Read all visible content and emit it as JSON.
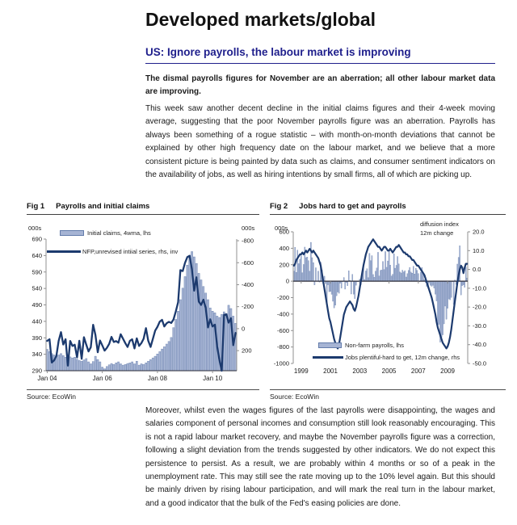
{
  "doc": {
    "title": "Developed markets/global",
    "section_heading": "US: Ignore payrolls, the labour market is improving",
    "lead": "The dismal payrolls figures for November are an aberration; all other labour market data are improving.",
    "para1": "This week saw another decent decline in the initial claims figures and their 4-week moving average, suggesting that the poor November payrolls figure was an aberration. Payrolls has always been something of a rogue statistic – with month-on-month deviations that cannot be explained by other high frequency date on the labour market, and we believe that a more consistent picture is being painted by data such as claims, and consumer sentiment indicators on the availability of jobs, as well as hiring intentions by small firms, all of which are picking up.",
    "para2": "Moreover, whilst even the wages figures of the last payrolls were disappointing, the wages and salaries component of personal incomes and consumption still look reasonably encouraging. This is not a rapid labour market recovery, and maybe the November payrolls figure was a correction, following a slight deviation from the trends suggested by other indicators. We do not expect this persistence to persist. As a result, we are probably within 4 months or so of a peak in the unemployment rate. This may still see the rate moving up to the 10% level again. But this should be mainly driven by rising labour participation, and will mark the real turn in the labour market, and a good indicator that the bulk of the Fed's easing policies are done."
  },
  "colors": {
    "heading_navy": "#1f1f8c",
    "bar_fill": "#a6b4d4",
    "bar_edge": "#637cab",
    "line": "#1c3a6e",
    "axis": "#909090",
    "axis_dark": "#2e2e3a",
    "text": "#1a1a1a"
  },
  "chart_data": [
    {
      "type": "bar+line",
      "fig_label": "Fig 1",
      "title": "Payrolls and initial claims",
      "source": "Source: EcoWin",
      "y_left_unit": "000s",
      "y_right_unit": "000s",
      "x_freq": "monthly",
      "x_start": "Jan 2004",
      "x_end": "Nov 2010",
      "x_ticks": [
        {
          "label": "Jan 04",
          "i": 0
        },
        {
          "label": "Jan 06",
          "i": 24
        },
        {
          "label": "Jan 08",
          "i": 48
        },
        {
          "label": "Jan 10",
          "i": 72
        }
      ],
      "y_left_ticks": [
        690,
        640,
        590,
        540,
        490,
        440,
        390,
        340,
        290
      ],
      "y_left_lim": [
        290,
        690
      ],
      "y_right_ticks": [
        -800,
        -600,
        -400,
        -200,
        0,
        200
      ],
      "y_right_lim": [
        -815,
        383
      ],
      "y_right_decimals": 0,
      "right_axis_inverted": true,
      "grid": false,
      "legend_position": "top-left-inside",
      "series": [
        {
          "name": "Initial claims, 4wma, lhs",
          "type": "bar",
          "axis": "left",
          "values": [
            355,
            348,
            342,
            338,
            335,
            338,
            342,
            336,
            331,
            328,
            332,
            329,
            331,
            325,
            321,
            319,
            323,
            327,
            317,
            311,
            318,
            334,
            324,
            317,
            301,
            296,
            303,
            308,
            312,
            309,
            314,
            317,
            311,
            307,
            309,
            312,
            314,
            317,
            311,
            319,
            307,
            311,
            309,
            314,
            319,
            324,
            329,
            334,
            341,
            348,
            356,
            363,
            371,
            379,
            391,
            421,
            446,
            471,
            506,
            541,
            576,
            611,
            641,
            652,
            636,
            616,
            586,
            566,
            546,
            526,
            506,
            481,
            471,
            466,
            456,
            452,
            461,
            469,
            463,
            489,
            479,
            456,
            434
          ]
        },
        {
          "name": "NFP,unrevised intiial series, rhs, inv",
          "type": "line",
          "axis": "right",
          "values": [
            112,
            96,
            308,
            288,
            248,
            112,
            32,
            144,
            96,
            337,
            112,
            157,
            146,
            262,
            110,
            274,
            78,
            146,
            207,
            169,
            -35,
            56,
            215,
            108,
            154,
            200,
            175,
            138,
            75,
            121,
            113,
            128,
            51,
            92,
            132,
            167,
            111,
            97,
            180,
            88,
            157,
            132,
            92,
            -4,
            110,
            166,
            94,
            18,
            -17,
            -63,
            -80,
            -20,
            -49,
            -62,
            -51,
            -84,
            -159,
            -240,
            -533,
            -524,
            -598,
            -651,
            -663,
            -539,
            -345,
            -467,
            -247,
            -216,
            -263,
            -190,
            -11,
            -85,
            -20,
            -36,
            162,
            290,
            431,
            -125,
            -131,
            -54,
            -95,
            151,
            39
          ]
        }
      ]
    },
    {
      "type": "bar+line",
      "fig_label": "Fig 2",
      "title": "Jobs hard to get and payrolls",
      "source": "Source: EcoWin",
      "y_left_unit": "000s",
      "y_right_unit_lines": [
        "diffusion index",
        "12m change"
      ],
      "x_freq": "monthly",
      "x_start": "Jan 1999",
      "x_end": "Nov 2010",
      "x_ticks": [
        {
          "label": "1999",
          "i": 6
        },
        {
          "label": "2001",
          "i": 30
        },
        {
          "label": "2003",
          "i": 54
        },
        {
          "label": "2005",
          "i": 78
        },
        {
          "label": "2007",
          "i": 102
        },
        {
          "label": "2009",
          "i": 126
        }
      ],
      "y_left_ticks": [
        600,
        400,
        200,
        0,
        -200,
        -400,
        -600,
        -800,
        -1000
      ],
      "y_left_lim": [
        -1000,
        600
      ],
      "y_right_ticks": [
        20,
        10,
        0,
        -10,
        -20,
        -30,
        -40,
        -50
      ],
      "y_right_lim": [
        20,
        -50
      ],
      "y_right_decimals": 1,
      "right_axis_inverted": false,
      "grid": false,
      "legend_position": "bottom-inside",
      "series": [
        {
          "name": "Non-farm payrolls, lhs",
          "type": "bar",
          "axis": "left",
          "values": [
            121,
            412,
            106,
            376,
            213,
            267,
            310,
            103,
            203,
            414,
            286,
            294,
            249,
            121,
            472,
            286,
            225,
            -46,
            163,
            3,
            122,
            -11,
            231,
            138,
            -30,
            61,
            -30,
            -281,
            -44,
            -128,
            -125,
            -160,
            -244,
            -325,
            -292,
            -178,
            -132,
            -147,
            -24,
            -85,
            -7,
            45,
            -97,
            -16,
            -55,
            126,
            8,
            -156,
            83,
            -158,
            -212,
            -49,
            -6,
            -2,
            25,
            -42,
            103,
            203,
            18,
            124,
            150,
            43,
            337,
            250,
            310,
            81,
            47,
            121,
            160,
            351,
            64,
            132,
            136,
            240,
            142,
            360,
            169,
            246,
            369,
            195,
            63,
            84,
            334,
            158,
            193,
            300,
            211,
            112,
            100,
            134,
            113,
            128,
            51,
            92,
            132,
            167,
            111,
            97,
            180,
            88,
            157,
            132,
            92,
            -4,
            110,
            166,
            94,
            18,
            -17,
            -63,
            -80,
            -20,
            -49,
            -62,
            -51,
            -84,
            -159,
            -240,
            -533,
            -524,
            -741,
            -681,
            -652,
            -519,
            -303,
            -463,
            -329,
            -216,
            -227,
            -198,
            -6,
            -283,
            14,
            -39,
            208,
            290,
            431,
            -167,
            -54,
            -45,
            -75,
            171,
            39
          ]
        },
        {
          "name": "Jobs plentiful-hard to get, 12m change, rhs",
          "type": "line",
          "axis": "right",
          "values": [
            2,
            3,
            5,
            6,
            7,
            8,
            8,
            9,
            8,
            9,
            10,
            9,
            10,
            11,
            10,
            9,
            10,
            9,
            8,
            7,
            6,
            4,
            2,
            -2,
            -6,
            -10,
            -14,
            -18,
            -22,
            -26,
            -28,
            -31,
            -34,
            -37,
            -39,
            -41,
            -42,
            -40,
            -36,
            -32,
            -28,
            -24,
            -22,
            -20,
            -19,
            -18,
            -17,
            -18,
            -19,
            -21,
            -22,
            -20,
            -17,
            -14,
            -10,
            -6,
            -2,
            2,
            5,
            8,
            10,
            12,
            13,
            14,
            15,
            16,
            15,
            14,
            13,
            12,
            12,
            11,
            10,
            11,
            12,
            12,
            11,
            10,
            10,
            11,
            10,
            9,
            10,
            11,
            12,
            12,
            13,
            12,
            11,
            10,
            9,
            9,
            8,
            8,
            7,
            7,
            6,
            5,
            5,
            4,
            3,
            2,
            2,
            1,
            0,
            -1,
            -2,
            -3,
            -5,
            -7,
            -9,
            -11,
            -13,
            -15,
            -18,
            -21,
            -24,
            -28,
            -31,
            -33,
            -35,
            -37,
            -39,
            -40,
            -41,
            -42,
            -41,
            -39,
            -36,
            -32,
            -27,
            -22,
            -17,
            -12,
            -7,
            -3,
            0,
            2,
            1,
            -2,
            1,
            3,
            3
          ]
        }
      ]
    }
  ]
}
